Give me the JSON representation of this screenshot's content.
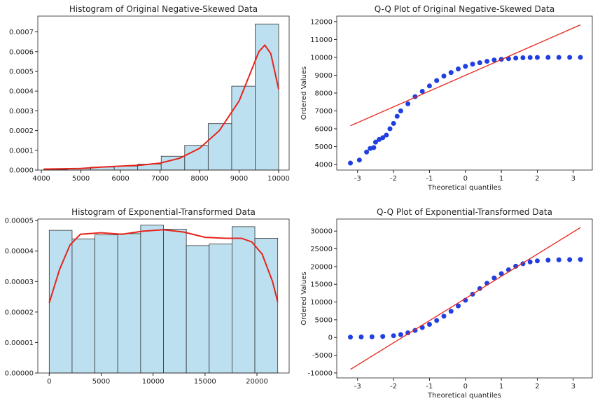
{
  "chart_data": [
    {
      "type": "histogram",
      "title": "Histogram of Original Negative-Skewed Data",
      "bins": [
        4060,
        4654,
        5248,
        5842,
        6436,
        7030,
        7624,
        8218,
        8812,
        9406,
        10000
      ],
      "values": [
        3e-06,
        8e-06,
        1.5e-05,
        2e-05,
        3e-05,
        7e-05,
        0.000125,
        0.000235,
        0.000425,
        0.00074
      ],
      "color": "#bde0f0",
      "edgecolor": "#333333",
      "kde": {
        "x": [
          4060,
          5000,
          5500,
          6000,
          6500,
          7000,
          7500,
          8000,
          8500,
          9000,
          9300,
          9500,
          9650,
          9800,
          10000
        ],
        "values": [
          5e-06,
          8e-06,
          1.5e-05,
          2e-05,
          2.5e-05,
          3.5e-05,
          6e-05,
          0.00011,
          0.0002,
          0.00035,
          0.0005,
          0.0006,
          0.000633,
          0.00059,
          0.00041
        ],
        "color": "#e8231a"
      },
      "xlim": [
        3910,
        10265
      ],
      "ylim": [
        0,
        0.00078
      ],
      "xticks": [
        4000,
        5000,
        6000,
        7000,
        8000,
        9000,
        10000
      ],
      "yticks": [
        {
          "value": 0,
          "label": "0.0000"
        },
        {
          "value": 0.0001,
          "label": "0.0001"
        },
        {
          "value": 0.0002,
          "label": "0.0002"
        },
        {
          "value": 0.0003,
          "label": "0.0003"
        },
        {
          "value": 0.0004,
          "label": "0.0004"
        },
        {
          "value": 0.0005,
          "label": "0.0005"
        },
        {
          "value": 0.0006,
          "label": "0.0006"
        },
        {
          "value": 0.0007,
          "label": "0.0007"
        }
      ]
    },
    {
      "type": "qq",
      "title": "Q-Q Plot of Original Negative-Skewed Data",
      "xlabel": "Theoretical quantiles",
      "ylabel": "Ordered Values",
      "x": [
        -3.2,
        -2.95,
        -2.75,
        -2.65,
        -2.55,
        -2.5,
        -2.4,
        -2.3,
        -2.2,
        -2.1,
        -2,
        -1.9,
        -1.8,
        -1.6,
        -1.4,
        -1.2,
        -1,
        -0.8,
        -0.6,
        -0.4,
        -0.2,
        0,
        0.2,
        0.4,
        0.6,
        0.8,
        1,
        1.2,
        1.4,
        1.6,
        1.8,
        2,
        2.3,
        2.6,
        2.9,
        3.2
      ],
      "values": [
        4080,
        4250,
        4700,
        4900,
        4950,
        5250,
        5400,
        5500,
        5650,
        6000,
        6300,
        6700,
        7000,
        7400,
        7800,
        8100,
        8400,
        8700,
        8950,
        9150,
        9350,
        9500,
        9620,
        9700,
        9780,
        9850,
        9890,
        9930,
        9960,
        9980,
        9990,
        9995,
        9998,
        9999,
        10000,
        10000
      ],
      "color": "#1f3fe0",
      "fit_line": {
        "x": [
          -3.2,
          3.2
        ],
        "values": [
          6170,
          11820
        ],
        "color": "#e8231a"
      },
      "xlim": [
        -3.58,
        3.53
      ],
      "ylim": [
        3690,
        12310
      ],
      "xticks": [
        -3,
        -2,
        -1,
        0,
        1,
        2,
        3
      ],
      "yticks": [
        4000,
        5000,
        6000,
        7000,
        8000,
        9000,
        10000,
        11000,
        12000
      ]
    },
    {
      "type": "histogram",
      "title": "Histogram of Exponential-Transformed Data",
      "bins": [
        0,
        2200,
        4400,
        6600,
        8800,
        11000,
        13200,
        15400,
        17600,
        19800,
        22000
      ],
      "values": [
        4.68e-05,
        4.4e-05,
        4.53e-05,
        4.57e-05,
        4.85e-05,
        4.72e-05,
        4.18e-05,
        4.23e-05,
        4.8e-05,
        4.42e-05
      ],
      "color": "#bde0f0",
      "edgecolor": "#333333",
      "kde": {
        "x": [
          0,
          1000,
          2000,
          3000,
          5000,
          7000,
          9000,
          11000,
          13000,
          15000,
          17000,
          18500,
          19500,
          20500,
          21500,
          22000
        ],
        "values": [
          2.3e-05,
          3.4e-05,
          4.2e-05,
          4.55e-05,
          4.6e-05,
          4.55e-05,
          4.65e-05,
          4.7e-05,
          4.62e-05,
          4.45e-05,
          4.42e-05,
          4.42e-05,
          4.3e-05,
          3.9e-05,
          3e-05,
          2.33e-05
        ],
        "color": "#e8231a"
      },
      "xlim": [
        -1100,
        23100
      ],
      "ylim": [
        0,
        5.05e-05
      ],
      "xticks": [
        0,
        5000,
        10000,
        15000,
        20000
      ],
      "yticks": [
        {
          "value": 0,
          "label": "0.00000"
        },
        {
          "value": 1e-05,
          "label": "0.00001"
        },
        {
          "value": 2e-05,
          "label": "0.00002"
        },
        {
          "value": 3e-05,
          "label": "0.00003"
        },
        {
          "value": 4e-05,
          "label": "0.00004"
        },
        {
          "value": 5e-05,
          "label": "0.00005"
        }
      ]
    },
    {
      "type": "qq",
      "title": "Q-Q Plot of Exponential-Transformed Data",
      "xlabel": "Theoretical quantiles",
      "ylabel": "Ordered Values",
      "x": [
        -3.2,
        -2.9,
        -2.6,
        -2.3,
        -2,
        -1.8,
        -1.6,
        -1.4,
        -1.2,
        -1,
        -0.8,
        -0.6,
        -0.4,
        -0.2,
        0,
        0.2,
        0.4,
        0.6,
        0.8,
        1,
        1.2,
        1.4,
        1.6,
        1.8,
        2,
        2.3,
        2.6,
        2.9,
        3.2
      ],
      "values": [
        100,
        150,
        200,
        300,
        500,
        800,
        1300,
        2000,
        2800,
        3700,
        4800,
        6000,
        7400,
        8900,
        10500,
        12200,
        13800,
        15300,
        16800,
        18000,
        19100,
        20100,
        20800,
        21300,
        21600,
        21800,
        21900,
        21950,
        22000
      ],
      "color": "#1f3fe0",
      "fit_line": {
        "x": [
          -3.2,
          3.2
        ],
        "values": [
          -9000,
          31000
        ],
        "color": "#e8231a"
      },
      "xlim": [
        -3.58,
        3.53
      ],
      "ylim": [
        -11400,
        33400
      ],
      "xticks": [
        -3,
        -2,
        -1,
        0,
        1,
        2,
        3
      ],
      "yticks": [
        -10000,
        -5000,
        0,
        5000,
        10000,
        15000,
        20000,
        25000,
        30000
      ]
    }
  ]
}
